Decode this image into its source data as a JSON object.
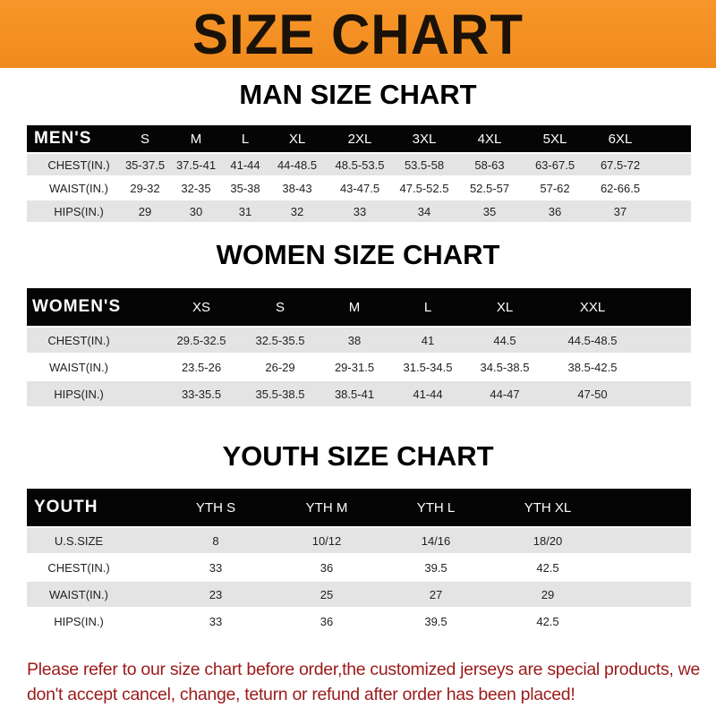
{
  "banner": {
    "title": "SIZE CHART",
    "color": "#f39024"
  },
  "men": {
    "title": "MAN SIZE CHART",
    "header": [
      "MEN'S",
      "S",
      "M",
      "L",
      "XL",
      "2XL",
      "3XL",
      "4XL",
      "5XL",
      "6XL"
    ],
    "rows": [
      [
        "CHEST(IN.)",
        "35-37.5",
        "37.5-41",
        "41-44",
        "44-48.5",
        "48.5-53.5",
        "53.5-58",
        "58-63",
        "63-67.5",
        "67.5-72"
      ],
      [
        "WAIST(IN.)",
        "29-32",
        "32-35",
        "35-38",
        "38-43",
        "43-47.5",
        "47.5-52.5",
        "52.5-57",
        "57-62",
        "62-66.5"
      ],
      [
        "HIPS(IN.)",
        "29",
        "30",
        "31",
        "32",
        "33",
        "34",
        "35",
        "36",
        "37"
      ]
    ]
  },
  "women": {
    "title": "WOMEN SIZE CHART",
    "header": [
      "WOMEN'S",
      "XS",
      "S",
      "M",
      "L",
      "XL",
      "XXL"
    ],
    "rows": [
      [
        "CHEST(IN.)",
        "29.5-32.5",
        "32.5-35.5",
        "38",
        "41",
        "44.5",
        "44.5-48.5"
      ],
      [
        "WAIST(IN.)",
        "23.5-26",
        "26-29",
        "29-31.5",
        "31.5-34.5",
        "34.5-38.5",
        "38.5-42.5"
      ],
      [
        "HIPS(IN.)",
        "33-35.5",
        "35.5-38.5",
        "38.5-41",
        "41-44",
        "44-47",
        "47-50"
      ]
    ]
  },
  "youth": {
    "title": "YOUTH SIZE CHART",
    "header": [
      "YOUTH",
      "YTH S",
      "YTH M",
      "YTH L",
      "YTH XL"
    ],
    "rows": [
      [
        "U.S.SIZE",
        "8",
        "10/12",
        "14/16",
        "18/20"
      ],
      [
        "CHEST(IN.)",
        "33",
        "36",
        "39.5",
        "42.5"
      ],
      [
        "WAIST(IN.)",
        "23",
        "25",
        "27",
        "29"
      ],
      [
        "HIPS(IN.)",
        "33",
        "36",
        "39.5",
        "42.5"
      ]
    ]
  },
  "note": "Please refer to our size chart before order,the customized jerseys are special products, we don't accept cancel, change, teturn or refund after order has been placed!"
}
